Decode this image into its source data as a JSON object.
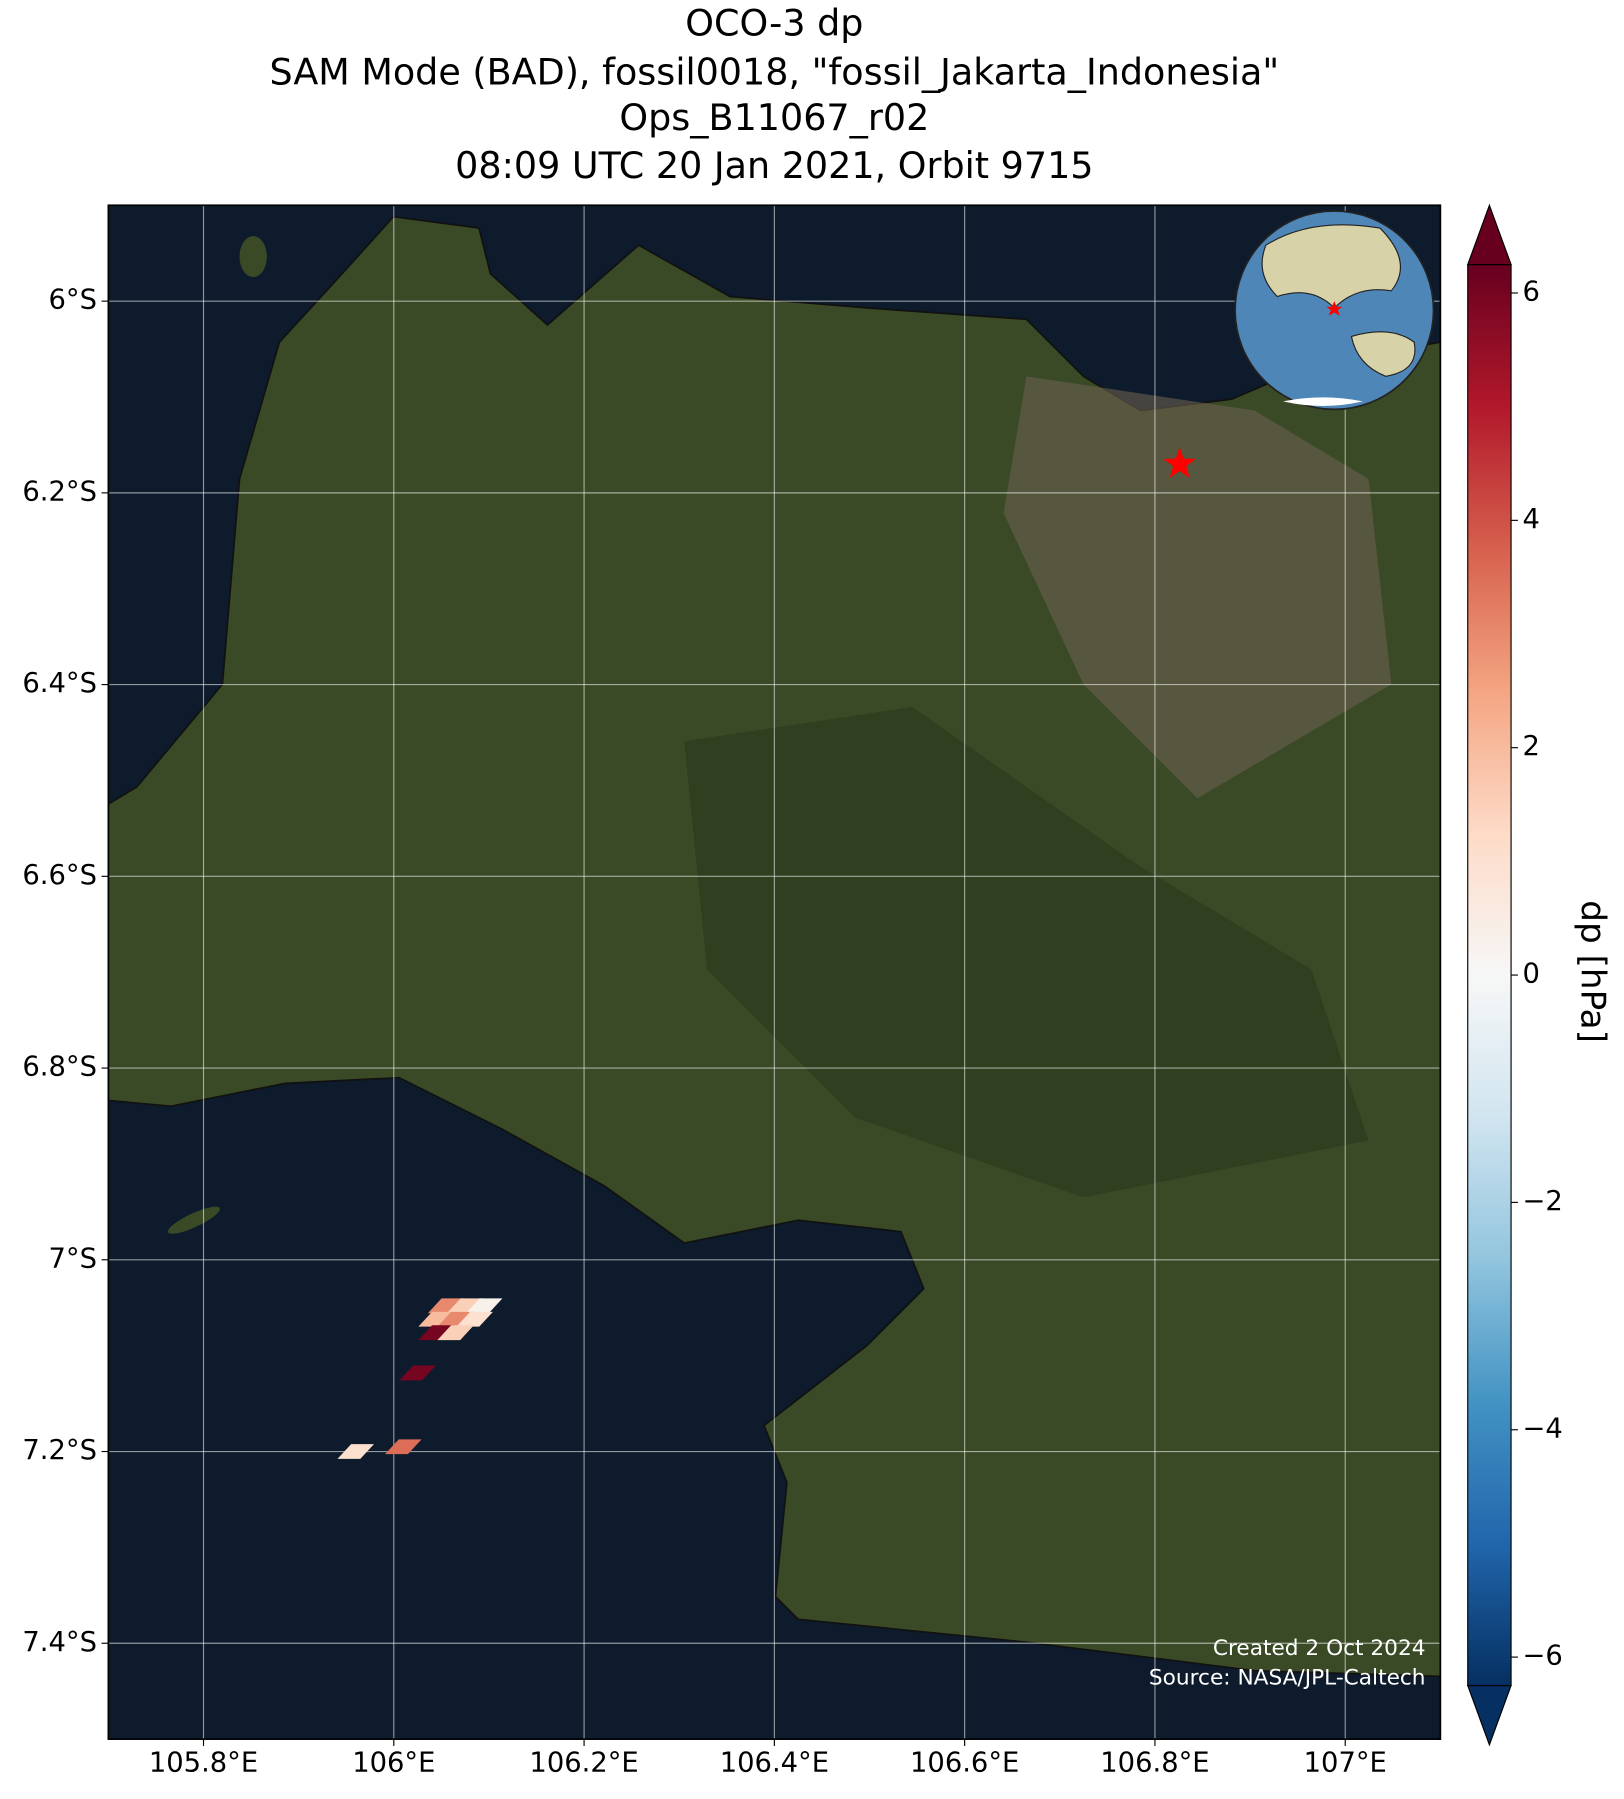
{
  "chart_data": {
    "type": "map",
    "title": [
      "OCO-3 dp",
      "SAM Mode (BAD), fossil0018, \"fossil_Jakarta_Indonesia\"",
      "Ops_B11067_r02",
      "08:09 UTC 20 Jan 2021, Orbit 9715"
    ],
    "xlim": [
      105.7,
      107.1
    ],
    "ylim": [
      -7.5,
      -5.9
    ],
    "xticks": [
      {
        "value": 105.8,
        "label": "105.8°E"
      },
      {
        "value": 106.0,
        "label": "106°E"
      },
      {
        "value": 106.2,
        "label": "106.2°E"
      },
      {
        "value": 106.4,
        "label": "106.4°E"
      },
      {
        "value": 106.6,
        "label": "106.6°E"
      },
      {
        "value": 106.8,
        "label": "106.8°E"
      },
      {
        "value": 107.0,
        "label": "107°E"
      }
    ],
    "yticks": [
      {
        "value": -6.0,
        "label": "6°S"
      },
      {
        "value": -6.2,
        "label": "6.2°S"
      },
      {
        "value": -6.4,
        "label": "6.4°S"
      },
      {
        "value": -6.6,
        "label": "6.6°S"
      },
      {
        "value": -6.8,
        "label": "6.8°S"
      },
      {
        "value": -7.0,
        "label": "7°S"
      },
      {
        "value": -7.2,
        "label": "7.2°S"
      },
      {
        "value": -7.4,
        "label": "7.4°S"
      }
    ],
    "grid": true,
    "target": {
      "lon": 106.826,
      "lat": -6.17,
      "color": "#ff0000"
    },
    "footprints": {
      "lon": [
        106.055,
        106.075,
        106.095,
        106.045,
        106.065,
        106.085,
        106.045,
        106.065,
        106.025,
        106.01,
        105.96
      ],
      "lat": [
        -7.048,
        -7.048,
        -7.048,
        -7.062,
        -7.062,
        -7.062,
        -7.076,
        -7.076,
        -7.118,
        -7.195,
        -7.2
      ],
      "values": [
        3,
        1.5,
        0.3,
        2,
        3,
        1,
        6,
        1.5,
        6,
        3.5,
        1
      ]
    },
    "colorbar": {
      "label": "dp [hPa]",
      "clim": [
        -6.25,
        6.25
      ],
      "colormap": "RdBu_r",
      "ticks": [
        {
          "value": -6,
          "label": "−6"
        },
        {
          "value": -4,
          "label": "−4"
        },
        {
          "value": -2,
          "label": "−2"
        },
        0,
        2,
        4,
        6
      ]
    },
    "annotations": [
      "Created 2 Oct 2024",
      "Source: NASA/JPL-Caltech"
    ]
  }
}
